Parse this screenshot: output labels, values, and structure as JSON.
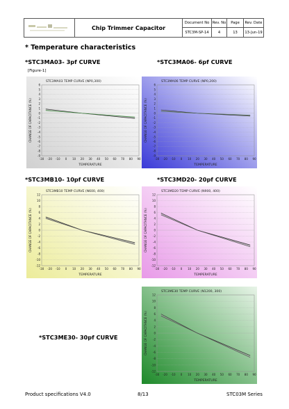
{
  "header": {
    "title": "Chip Trimmer Capacitor",
    "col_headers": [
      "Document No",
      "Rev. No",
      "Page",
      "Rev. Date"
    ],
    "col_values": [
      "STC3M-SP-14",
      "4",
      "13",
      "13-Jun-19"
    ]
  },
  "section_title": "* Temperature characteristics",
  "figure_label": "[Figure-1]",
  "charts_common": {
    "ylabel": "CHANGE OF CAPACITANCE (%)",
    "xlabel": "TEMPERATURE",
    "x_ticks": [
      -30,
      -20,
      -10,
      0,
      10,
      20,
      30,
      40,
      50,
      60,
      70,
      80,
      90
    ]
  },
  "chart_data": [
    {
      "type": "line",
      "caption": "*STC3MA03- 3pf  CURVE",
      "title": "STC3MA03  TEMP CURVE (NP0,300)",
      "xlim": [
        -30,
        90
      ],
      "ylim": [
        -9,
        6
      ],
      "y_ticks": [
        6,
        5,
        4,
        3,
        2,
        1,
        0,
        -1,
        -2,
        -3,
        -4,
        -5,
        -6,
        -7,
        -8,
        -9
      ],
      "series": [
        {
          "x": [
            -25,
            20,
            85
          ],
          "y": [
            0.9,
            0,
            -1.1
          ]
        },
        {
          "x": [
            -25,
            20,
            85
          ],
          "y": [
            0.6,
            0,
            -0.8
          ]
        }
      ],
      "bg": [
        "#d0d0d0",
        "#ffffff"
      ],
      "line_color": "#3a8a3a"
    },
    {
      "type": "line",
      "caption": "*STC3MA06- 6pf  CURVE",
      "title": "STC3MA06  TEMP CURVE (NP0,200)",
      "xlim": [
        -30,
        90
      ],
      "ylim": [
        -9,
        6
      ],
      "y_ticks": [
        6,
        5,
        4,
        3,
        2,
        1,
        0,
        -1,
        -2,
        -3,
        -4,
        -5,
        -6,
        -7,
        -8,
        -9
      ],
      "series": [
        {
          "x": [
            -25,
            20,
            85
          ],
          "y": [
            0.7,
            0,
            -0.6
          ]
        },
        {
          "x": [
            -25,
            20,
            85
          ],
          "y": [
            0.4,
            0,
            -0.4
          ]
        }
      ],
      "bg": [
        "#3a3ad8",
        "#ffffff"
      ],
      "line_color": "#4a6a4a"
    },
    {
      "type": "line",
      "caption": "*STC3MB10- 10pf  CURVE",
      "title": "STC3MB10  TEMP CURVE (N600, 400)",
      "xlim": [
        -30,
        90
      ],
      "ylim": [
        -12,
        12
      ],
      "y_ticks": [
        12,
        10,
        8,
        6,
        4,
        2,
        0,
        -2,
        -4,
        -6,
        -8,
        -10,
        -12
      ],
      "series": [
        {
          "x": [
            -25,
            20,
            85
          ],
          "y": [
            4.5,
            0,
            -4.2
          ]
        },
        {
          "x": [
            -25,
            20,
            85
          ],
          "y": [
            4.0,
            0,
            -4.8
          ]
        }
      ],
      "bg": [
        "#ecec9a",
        "#ffffff"
      ],
      "line_color": "#555555"
    },
    {
      "type": "line",
      "caption": "*STC3MD20- 20pf  CURVE",
      "title": "STC3MD20  TEMP CURVE (N900, 400)",
      "xlim": [
        -30,
        90
      ],
      "ylim": [
        -12,
        12
      ],
      "y_ticks": [
        12,
        10,
        8,
        6,
        4,
        2,
        0,
        -2,
        -4,
        -6,
        -8,
        -10,
        -12
      ],
      "series": [
        {
          "x": [
            -25,
            20,
            85
          ],
          "y": [
            5.8,
            0,
            -5.0
          ]
        },
        {
          "x": [
            -25,
            20,
            85
          ],
          "y": [
            5.2,
            0,
            -5.6
          ]
        }
      ],
      "bg": [
        "#e89ae8",
        "#ffffff"
      ],
      "line_color": "#555555"
    },
    {
      "type": "line",
      "caption": "*STC3ME30- 30pf  CURVE",
      "title": "STC3ME30 TEMP CURVE (N1200, 300)",
      "xlim": [
        -30,
        90
      ],
      "ylim": [
        -12,
        12
      ],
      "y_ticks": [
        12,
        10,
        8,
        6,
        4,
        2,
        0,
        -2,
        -4,
        -6,
        -8,
        -10,
        -12
      ],
      "series": [
        {
          "x": [
            -25,
            20,
            85
          ],
          "y": [
            6.0,
            0,
            -7.0
          ]
        },
        {
          "x": [
            -25,
            20,
            85
          ],
          "y": [
            5.4,
            0,
            -7.6
          ]
        }
      ],
      "bg": [
        "#1e8a2a",
        "#e8f4e8"
      ],
      "line_color": "#555555"
    }
  ],
  "footer": {
    "left": "Product specifications V4.0",
    "center": "8/13",
    "right": "STC03M Series"
  }
}
